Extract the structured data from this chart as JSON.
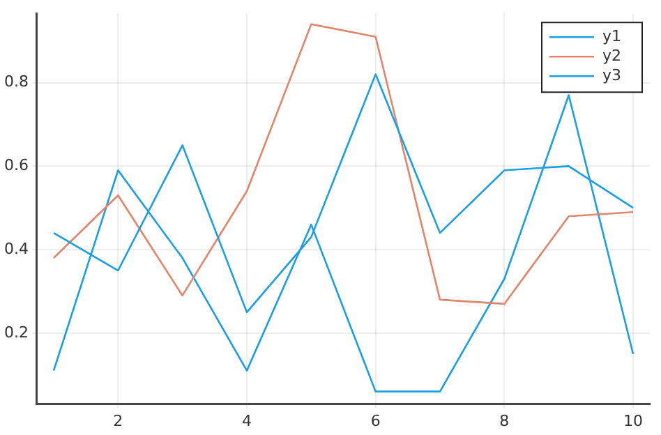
{
  "chart_data": {
    "type": "line",
    "x": [
      1,
      2,
      3,
      4,
      5,
      6,
      7,
      8,
      9,
      10
    ],
    "series": [
      {
        "name": "y1",
        "color": "#1a9fe6",
        "values": [
          0.44,
          0.35,
          0.65,
          0.25,
          0.43,
          0.82,
          0.44,
          0.59,
          0.6,
          0.5
        ]
      },
      {
        "name": "y2",
        "color": "#e2856a",
        "values": [
          0.38,
          0.53,
          0.29,
          0.54,
          0.94,
          0.91,
          0.28,
          0.27,
          0.48,
          0.49
        ]
      },
      {
        "name": "y3",
        "color": "#1a9fe6",
        "values": [
          0.11,
          0.59,
          0.38,
          0.11,
          0.46,
          0.06,
          0.06,
          0.33,
          0.77,
          0.15
        ]
      }
    ],
    "xlim": [
      0.74,
      10.26
    ],
    "xticks": [
      2,
      4,
      6,
      8,
      10
    ],
    "ylim": [
      0.03,
      0.966
    ],
    "yticks": [
      {
        "value": 0.2,
        "label": "0.2"
      },
      {
        "value": 0.4,
        "label": "0.4"
      },
      {
        "value": 0.6,
        "label": "0.6"
      },
      {
        "value": 0.8,
        "label": "0.8"
      }
    ],
    "grid": true,
    "legend": "top right",
    "marker": "none",
    "line_style": "solid"
  }
}
